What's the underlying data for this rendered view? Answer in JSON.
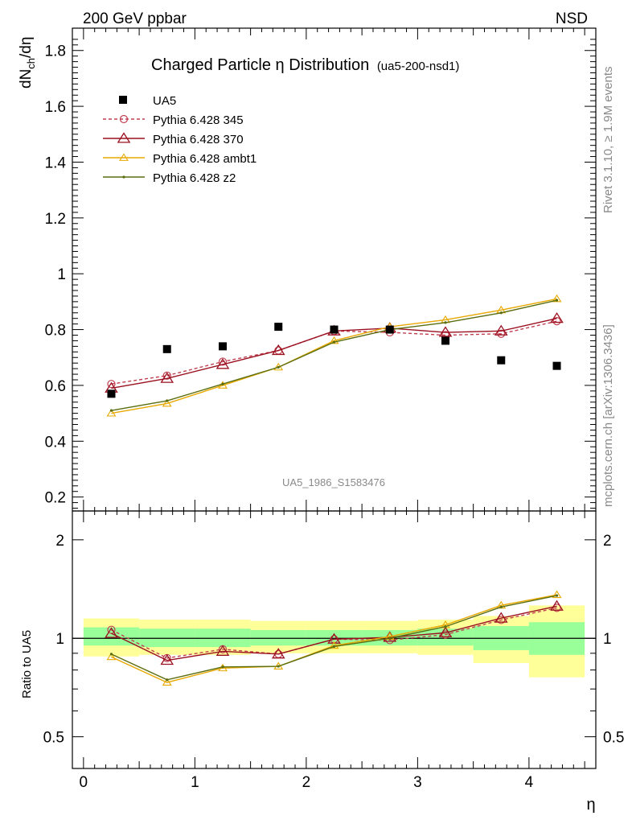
{
  "header": {
    "left": "200 GeV ppbar",
    "right": "NSD"
  },
  "side": {
    "rivet": "Rivet 3.1.10, ≥ 1.9M events",
    "mcplots": "mcplots.cern.ch [arXiv:1306.3436]"
  },
  "chart_data": {
    "type": "line",
    "title": "Charged Particle η Distribution",
    "title_suffix": "(ua5-200-nsd1)",
    "watermark": "UA5_1986_S1583476",
    "xlabel": "η",
    "ylabel_main": "dN_ch/dη",
    "ylabel_ratio": "Ratio to UA5",
    "xlim": [
      -0.1,
      4.6
    ],
    "ylim_main": [
      0.15,
      1.88
    ],
    "ylim_ratio": [
      0.4,
      2.45
    ],
    "ratio_log": true,
    "x_ticks": [
      "0",
      "1",
      "2",
      "3",
      "4"
    ],
    "y_ticks_main": [
      "0.2",
      "0.4",
      "0.6",
      "0.8",
      "1",
      "1.2",
      "1.4",
      "1.6",
      "1.8"
    ],
    "y_ticks_ratio": [
      "0.5",
      "1",
      "2"
    ],
    "legend_placement": "top-left",
    "x": [
      0.25,
      0.75,
      1.25,
      1.75,
      2.25,
      2.75,
      3.25,
      3.75,
      4.25
    ],
    "data": {
      "name": "UA5",
      "values": [
        0.57,
        0.73,
        0.74,
        0.81,
        0.8,
        0.8,
        0.76,
        0.69,
        0.67
      ],
      "band_edges": [
        0,
        0.5,
        1.0,
        1.5,
        2.0,
        2.5,
        3.0,
        3.5,
        4.0,
        4.5
      ],
      "band_green": [
        [
          0.95,
          1.08
        ],
        [
          0.94,
          1.07
        ],
        [
          0.94,
          1.07
        ],
        [
          0.95,
          1.06
        ],
        [
          0.95,
          1.06
        ],
        [
          0.95,
          1.06
        ],
        [
          0.95,
          1.07
        ],
        [
          0.92,
          1.09
        ],
        [
          0.89,
          1.12
        ]
      ],
      "band_yellow": [
        [
          0.88,
          1.15
        ],
        [
          0.89,
          1.14
        ],
        [
          0.89,
          1.14
        ],
        [
          0.9,
          1.13
        ],
        [
          0.9,
          1.13
        ],
        [
          0.9,
          1.13
        ],
        [
          0.89,
          1.14
        ],
        [
          0.84,
          1.17
        ],
        [
          0.76,
          1.26
        ]
      ]
    },
    "series": [
      {
        "name": "Pythia 6.428 345",
        "color": "#c04050",
        "marker": "circle",
        "dashed": true,
        "values": [
          0.605,
          0.635,
          0.685,
          0.725,
          0.795,
          0.79,
          0.78,
          0.785,
          0.83
        ]
      },
      {
        "name": "Pythia 6.428 370",
        "color": "#9b1020",
        "marker": "triangle",
        "dashed": false,
        "values": [
          0.59,
          0.625,
          0.675,
          0.725,
          0.795,
          0.805,
          0.79,
          0.795,
          0.84
        ]
      },
      {
        "name": "Pythia 6.428 ambt1",
        "color": "#e8a800",
        "marker": "triangle-small",
        "dashed": false,
        "values": [
          0.5,
          0.535,
          0.6,
          0.665,
          0.76,
          0.81,
          0.835,
          0.87,
          0.91
        ]
      },
      {
        "name": "Pythia 6.428 z2",
        "color": "#5a6e10",
        "marker": "dot",
        "dashed": false,
        "values": [
          0.51,
          0.545,
          0.605,
          0.665,
          0.755,
          0.8,
          0.825,
          0.86,
          0.905
        ]
      }
    ]
  }
}
